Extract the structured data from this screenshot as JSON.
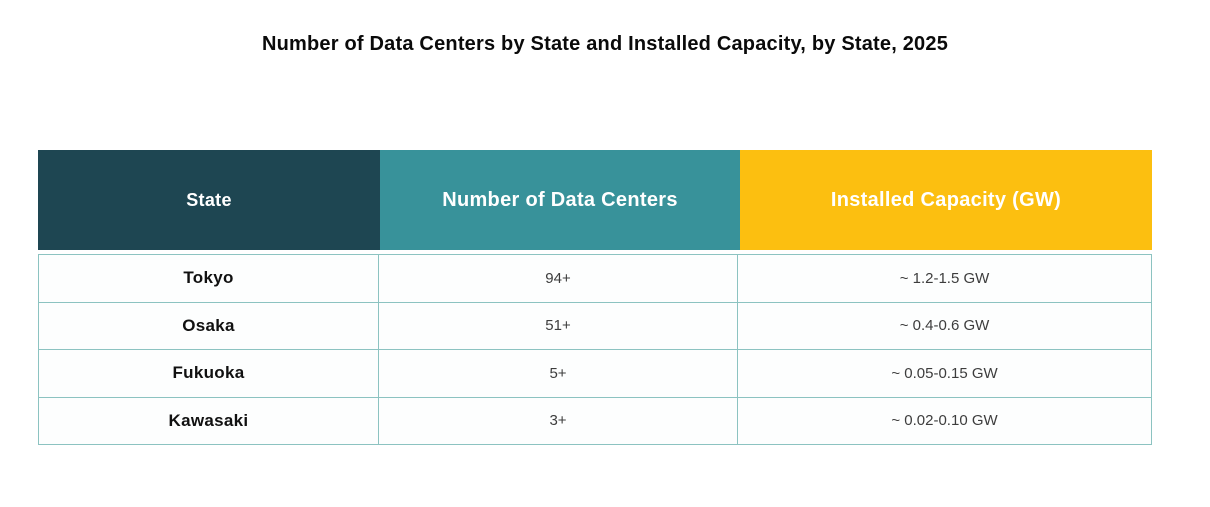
{
  "title": "Number of Data Centers by State and Installed Capacity, by State, 2025",
  "colors": {
    "header_col1_bg": "#1e4652",
    "header_col2_bg": "#38929a",
    "header_col3_bg": "#fcbf10",
    "header_text": "#ffffff",
    "border": "#8cc3c1",
    "row_bg": "#fdfefe",
    "state_text": "#111111",
    "value_text": "#3d3d3d"
  },
  "table": {
    "columns": [
      {
        "label": "State"
      },
      {
        "label": "Number of Data Centers"
      },
      {
        "label": "Installed Capacity (GW)"
      }
    ],
    "rows": [
      {
        "state": "Tokyo",
        "count": "94+",
        "capacity": "~ 1.2-1.5 GW"
      },
      {
        "state": "Osaka",
        "count": "51+",
        "capacity": "~ 0.4-0.6 GW"
      },
      {
        "state": "Fukuoka",
        "count": "5+",
        "capacity": "~ 0.05-0.15 GW"
      },
      {
        "state": "Kawasaki",
        "count": "3+",
        "capacity": "~ 0.02-0.10 GW"
      }
    ]
  },
  "chart_data": {
    "type": "table",
    "title": "Number of Data Centers by State and Installed Capacity, by State, 2025",
    "columns": [
      "State",
      "Number of Data Centers",
      "Installed Capacity (GW)"
    ],
    "rows": [
      [
        "Tokyo",
        "94+",
        "~ 1.2-1.5 GW"
      ],
      [
        "Osaka",
        "51+",
        "~ 0.4-0.6 GW"
      ],
      [
        "Fukuoka",
        "5+",
        "~ 0.05-0.15 GW"
      ],
      [
        "Kawasaki",
        "3+",
        "~ 0.02-0.10 GW"
      ]
    ],
    "numeric": {
      "data_center_counts_min": [
        94,
        51,
        5,
        3
      ],
      "installed_capacity_gw_ranges": [
        [
          1.2,
          1.5
        ],
        [
          0.4,
          0.6
        ],
        [
          0.05,
          0.15
        ],
        [
          0.02,
          0.1
        ]
      ]
    },
    "legend_position": "none",
    "grid": true
  }
}
